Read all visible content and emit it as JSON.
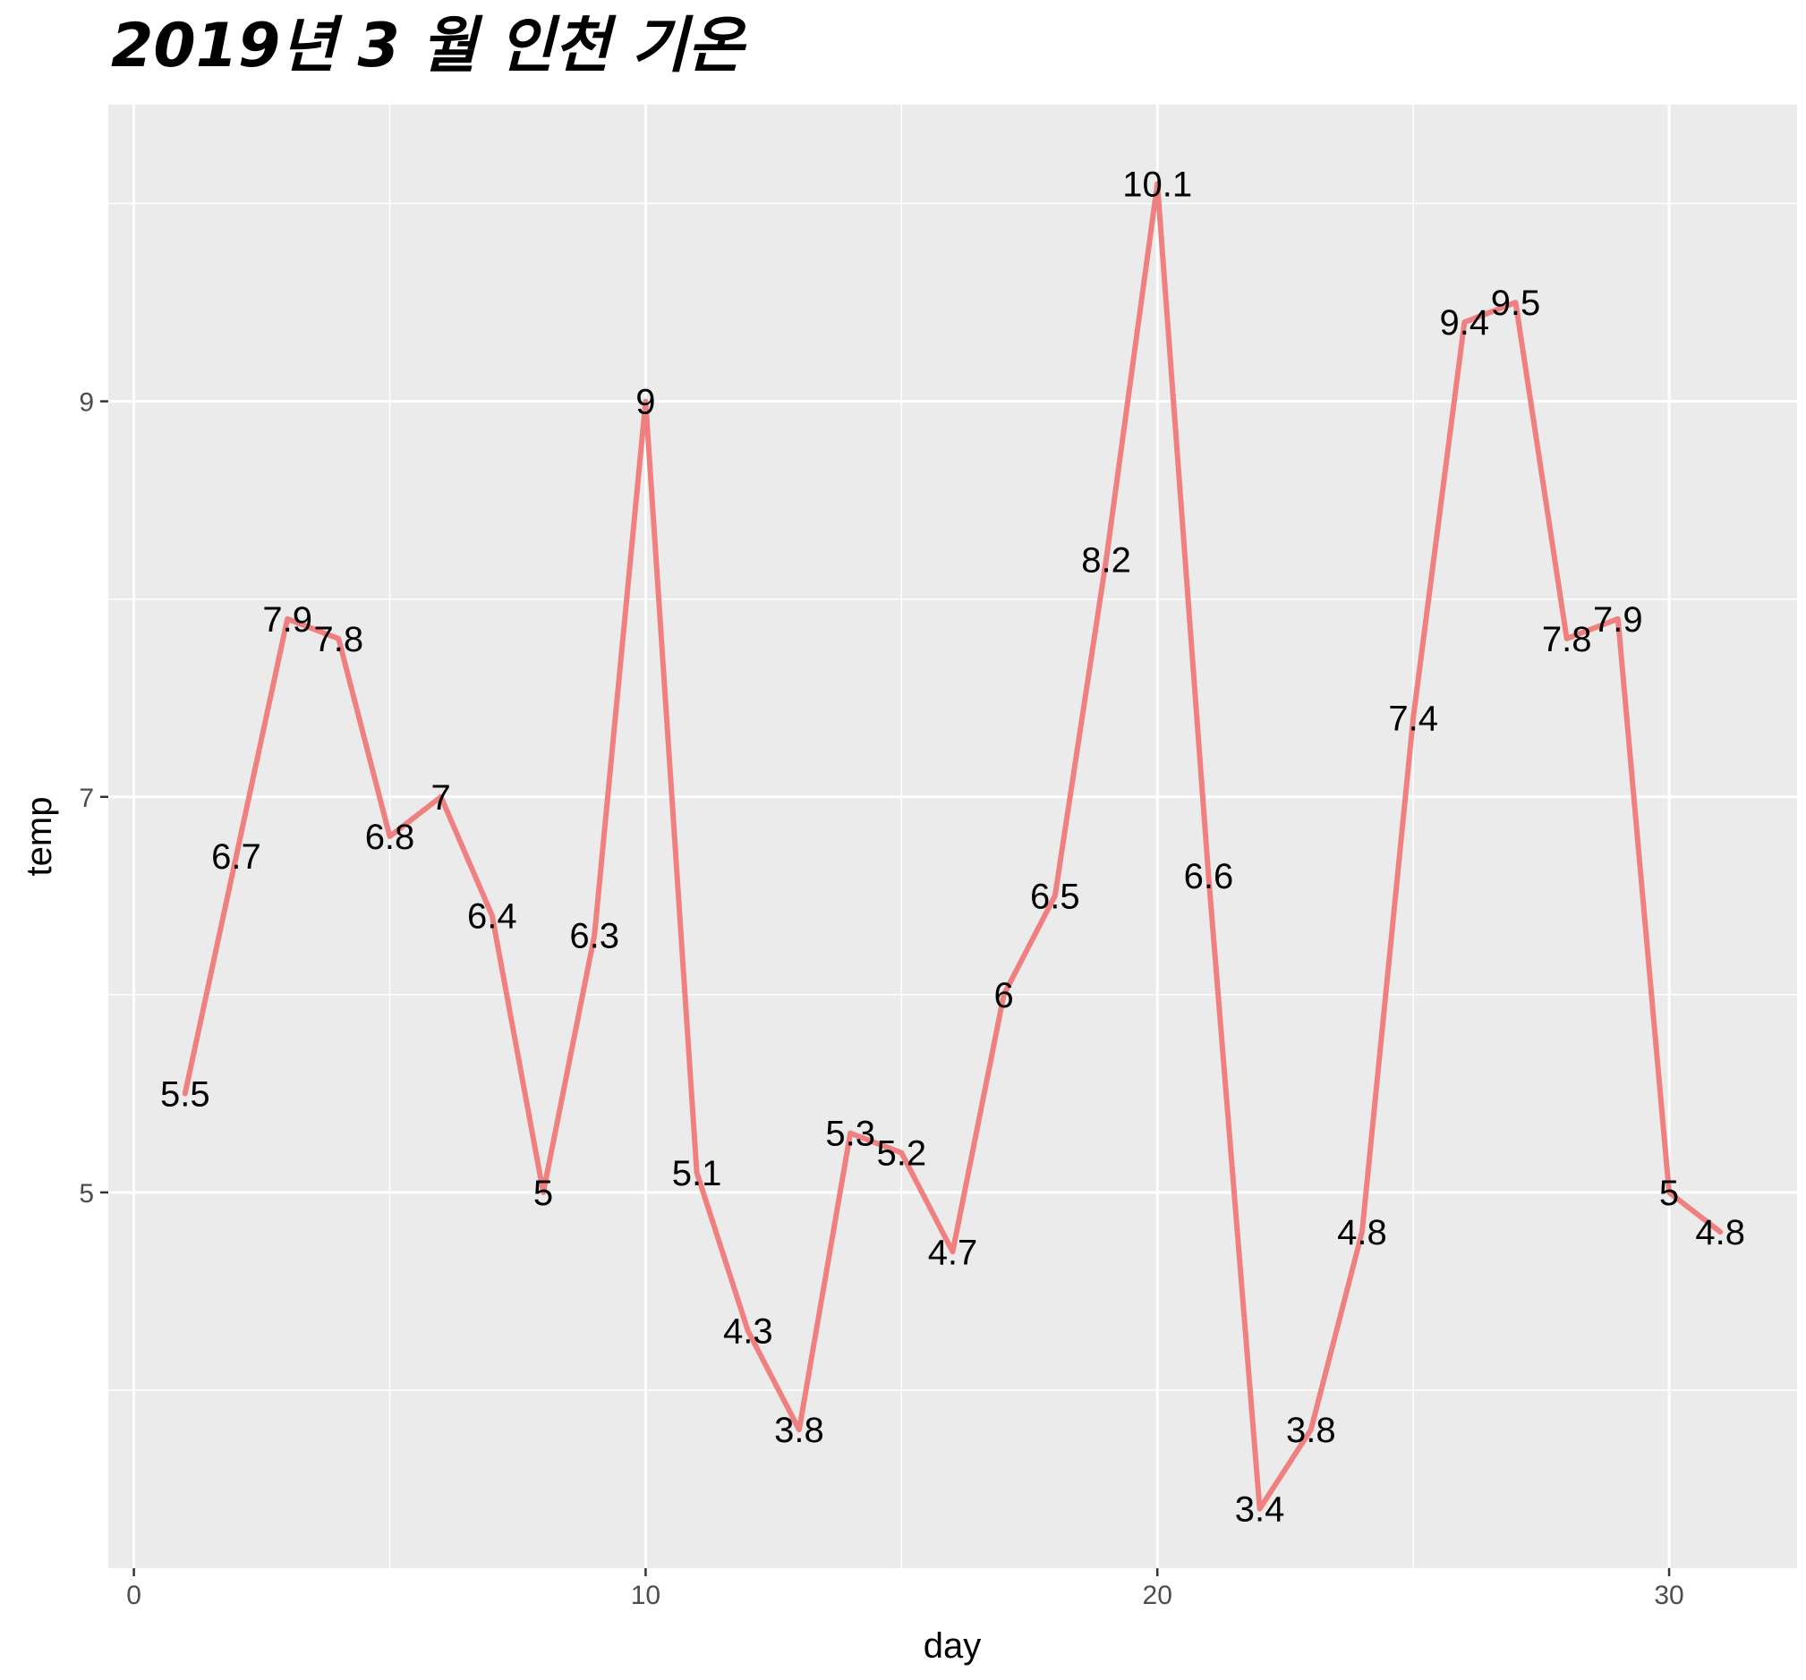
{
  "chart_data": {
    "type": "line",
    "title": "2019년 3 월 인천 기온",
    "xlabel": "day",
    "ylabel": "temp",
    "xlim": [
      -0.5,
      32.5
    ],
    "ylim": [
      3.1,
      10.5
    ],
    "x_major_ticks": [
      0,
      10,
      20,
      30
    ],
    "x_minor_ticks": [
      5,
      15,
      25
    ],
    "y_major_ticks": [
      5,
      7,
      9
    ],
    "y_minor_ticks": [
      4,
      6,
      8,
      10
    ],
    "grid": true,
    "background": "#EBEBEB",
    "line_color": "#F08080",
    "series": [
      {
        "x": [
          1,
          2,
          3,
          4,
          5,
          6,
          7,
          8,
          9,
          10,
          11,
          12,
          13,
          14,
          15,
          16,
          17,
          18,
          19,
          20,
          21,
          22,
          23,
          24,
          25,
          26,
          27,
          28,
          29,
          30,
          31
        ],
        "values": [
          5.5,
          6.7,
          7.9,
          7.8,
          6.8,
          7,
          6.4,
          5,
          6.3,
          9,
          5.1,
          4.3,
          3.8,
          5.3,
          5.2,
          4.7,
          6,
          6.5,
          8.2,
          10.1,
          6.6,
          3.4,
          3.8,
          4.8,
          7.4,
          9.4,
          9.5,
          7.8,
          7.9,
          5,
          4.8
        ],
        "labels": [
          "5.5",
          "6.7",
          "7.9",
          "7.8",
          "6.8",
          "7",
          "6.4",
          "5",
          "6.3",
          "9",
          "5.1",
          "4.3",
          "3.8",
          "5.3",
          "5.2",
          "4.7",
          "6",
          "6.5",
          "8.2",
          "10.1",
          "6.6",
          "3.4",
          "3.8",
          "4.8",
          "7.4",
          "9.4",
          "9.5",
          "7.8",
          "7.9",
          "5",
          "4.8"
        ]
      }
    ]
  }
}
